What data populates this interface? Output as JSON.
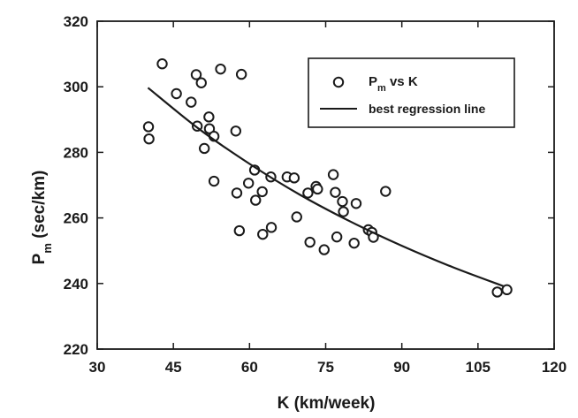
{
  "chart_data": {
    "type": "scatter",
    "title": "",
    "xlabel": "K (km/week)",
    "ylabel": "P (sec/km)",
    "ylabel_parts": {
      "main": "P",
      "sub": "m",
      "rest": " (sec/km)"
    },
    "xlim": [
      30,
      120
    ],
    "ylim": [
      220,
      320
    ],
    "xticks": [
      30,
      45,
      60,
      75,
      90,
      105,
      120
    ],
    "yticks": [
      220,
      240,
      260,
      280,
      300,
      320
    ],
    "grid": false,
    "legend_position": "top-right",
    "series": [
      {
        "name": "Pm vs K",
        "name_parts": {
          "main": "P",
          "sub": "m",
          "rest": " vs K"
        },
        "kind": "points",
        "points": [
          [
            40.1,
            287.8
          ],
          [
            40.2,
            284.1
          ],
          [
            42.8,
            307.0
          ],
          [
            45.6,
            297.9
          ],
          [
            48.5,
            295.3
          ],
          [
            49.5,
            303.7
          ],
          [
            49.7,
            288.0
          ],
          [
            50.5,
            301.2
          ],
          [
            51.1,
            281.2
          ],
          [
            52.0,
            290.8
          ],
          [
            52.1,
            287.2
          ],
          [
            53.0,
            284.9
          ],
          [
            53.0,
            271.2
          ],
          [
            54.3,
            305.4
          ],
          [
            57.3,
            286.5
          ],
          [
            57.5,
            267.6
          ],
          [
            58.0,
            256.1
          ],
          [
            58.4,
            303.8
          ],
          [
            59.8,
            270.6
          ],
          [
            61.0,
            274.6
          ],
          [
            61.2,
            265.4
          ],
          [
            62.5,
            268.0
          ],
          [
            62.6,
            255.0
          ],
          [
            64.2,
            272.5
          ],
          [
            64.3,
            257.1
          ],
          [
            67.4,
            272.5
          ],
          [
            68.8,
            272.2
          ],
          [
            69.3,
            260.3
          ],
          [
            71.5,
            267.6
          ],
          [
            71.9,
            252.6
          ],
          [
            73.1,
            269.6
          ],
          [
            73.4,
            268.8
          ],
          [
            74.7,
            250.3
          ],
          [
            76.5,
            273.2
          ],
          [
            76.9,
            267.8
          ],
          [
            77.2,
            254.2
          ],
          [
            78.3,
            265.0
          ],
          [
            78.5,
            261.9
          ],
          [
            80.6,
            252.3
          ],
          [
            81.0,
            264.4
          ],
          [
            83.4,
            256.4
          ],
          [
            84.1,
            255.6
          ],
          [
            84.4,
            254.1
          ],
          [
            86.8,
            268.1
          ],
          [
            108.8,
            237.4
          ],
          [
            110.7,
            238.1
          ]
        ]
      },
      {
        "name": "best regression line",
        "kind": "line",
        "x": [
          40,
          50,
          60,
          70,
          80,
          90,
          100,
          110
        ],
        "y": [
          299.7,
          287.2,
          276.5,
          267.0,
          258.8,
          251.5,
          245.0,
          239.2
        ]
      }
    ]
  },
  "colors": {
    "axis": "#1a1a1a",
    "marker": "#1a1a1a",
    "line": "#1a1a1a"
  }
}
